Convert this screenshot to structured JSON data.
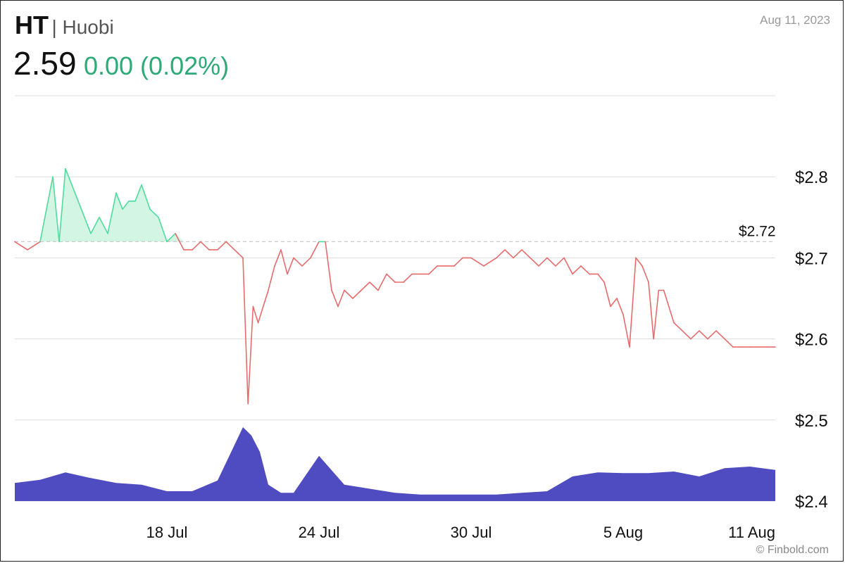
{
  "header": {
    "symbol": "HT",
    "separator_name": "| Huobi",
    "price": "2.59",
    "change": "0.00 (0.02%)",
    "date": "Aug 11, 2023"
  },
  "footer": {
    "credit": "© Finbold.com"
  },
  "colors": {
    "up": "#4fdc9c",
    "up_fill": "#d3f5e4",
    "down": "#e86b6b",
    "change_text": "#2eaa78",
    "volume": "#4f4bc0",
    "grid": "#dddddd",
    "reference": "#cccccc"
  },
  "chart_data": {
    "type": "line",
    "title": "",
    "xlabel": "",
    "ylabel": "",
    "y_tick_labels": [
      "$2.8",
      "$2.7",
      "$2.6",
      "$2.5",
      "$2.4"
    ],
    "y_ticks": [
      2.8,
      2.7,
      2.6,
      2.5,
      2.4
    ],
    "ylim": [
      2.4,
      2.9
    ],
    "x_tick_labels": [
      "18 Jul",
      "24 Jul",
      "30 Jul",
      "5 Aug",
      "11 Aug"
    ],
    "x_ticks": [
      "2023-07-18",
      "2023-07-24",
      "2023-07-30",
      "2023-08-05",
      "2023-08-11"
    ],
    "xlim": [
      "2023-07-12",
      "2023-08-11"
    ],
    "reference": {
      "value": 2.72,
      "label": "$2.72"
    },
    "grid": true,
    "series": [
      {
        "x": [
          "2023-07-12",
          "2023-07-12",
          "2023-07-13",
          "2023-07-13",
          "2023-07-13",
          "2023-07-13",
          "2023-07-14",
          "2023-07-14",
          "2023-07-14",
          "2023-07-14",
          "2023-07-15",
          "2023-07-15",
          "2023-07-15",
          "2023-07-16",
          "2023-07-16",
          "2023-07-16",
          "2023-07-16",
          "2023-07-17",
          "2023-07-17",
          "2023-07-17",
          "2023-07-18",
          "2023-07-18",
          "2023-07-18",
          "2023-07-19",
          "2023-07-19",
          "2023-07-19",
          "2023-07-20",
          "2023-07-20",
          "2023-07-20",
          "2023-07-21",
          "2023-07-21",
          "2023-07-21",
          "2023-07-21",
          "2023-07-21",
          "2023-07-22",
          "2023-07-22",
          "2023-07-22",
          "2023-07-22",
          "2023-07-23",
          "2023-07-23",
          "2023-07-23",
          "2023-07-24",
          "2023-07-24",
          "2023-07-24",
          "2023-07-24",
          "2023-07-25",
          "2023-07-25",
          "2023-07-25",
          "2023-07-26",
          "2023-07-26",
          "2023-07-26",
          "2023-07-27",
          "2023-07-27",
          "2023-07-27",
          "2023-07-28",
          "2023-07-28",
          "2023-07-28",
          "2023-07-29",
          "2023-07-29",
          "2023-07-29",
          "2023-07-30",
          "2023-07-30",
          "2023-07-31",
          "2023-07-31",
          "2023-07-31",
          "2023-08-01",
          "2023-08-01",
          "2023-08-01",
          "2023-08-02",
          "2023-08-02",
          "2023-08-02",
          "2023-08-03",
          "2023-08-03",
          "2023-08-03",
          "2023-08-04",
          "2023-08-04",
          "2023-08-04",
          "2023-08-04",
          "2023-08-05",
          "2023-08-05",
          "2023-08-05",
          "2023-08-05",
          "2023-08-06",
          "2023-08-06",
          "2023-08-06",
          "2023-08-06",
          "2023-08-06",
          "2023-08-07",
          "2023-08-07",
          "2023-08-07",
          "2023-08-08",
          "2023-08-08",
          "2023-08-08",
          "2023-08-09",
          "2023-08-09",
          "2023-08-09",
          "2023-08-10",
          "2023-08-10",
          "2023-08-10",
          "2023-08-11"
        ],
        "values": [
          2.72,
          2.71,
          2.72,
          2.76,
          2.8,
          2.72,
          2.81,
          2.79,
          2.77,
          2.75,
          2.73,
          2.75,
          2.73,
          2.78,
          2.76,
          2.77,
          2.77,
          2.79,
          2.76,
          2.75,
          2.72,
          2.73,
          2.71,
          2.71,
          2.72,
          2.71,
          2.71,
          2.72,
          2.71,
          2.7,
          2.52,
          2.64,
          2.62,
          2.64,
          2.66,
          2.69,
          2.71,
          2.68,
          2.7,
          2.69,
          2.7,
          2.72,
          2.72,
          2.66,
          2.64,
          2.66,
          2.65,
          2.66,
          2.67,
          2.66,
          2.68,
          2.67,
          2.67,
          2.68,
          2.68,
          2.68,
          2.69,
          2.69,
          2.69,
          2.7,
          2.7,
          2.69,
          2.7,
          2.71,
          2.7,
          2.71,
          2.7,
          2.69,
          2.7,
          2.69,
          2.7,
          2.68,
          2.69,
          2.68,
          2.68,
          2.67,
          2.64,
          2.65,
          2.63,
          2.59,
          2.7,
          2.69,
          2.67,
          2.6,
          2.66,
          2.66,
          2.64,
          2.62,
          2.61,
          2.6,
          2.61,
          2.6,
          2.61,
          2.6,
          2.59,
          2.59,
          2.59,
          2.59,
          2.59,
          2.59
        ]
      }
    ],
    "volume": {
      "x": [
        "2023-07-12",
        "2023-07-13",
        "2023-07-14",
        "2023-07-15",
        "2023-07-16",
        "2023-07-17",
        "2023-07-18",
        "2023-07-19",
        "2023-07-20",
        "2023-07-21",
        "2023-07-21",
        "2023-07-21",
        "2023-07-22",
        "2023-07-22",
        "2023-07-23",
        "2023-07-24",
        "2023-07-25",
        "2023-07-26",
        "2023-07-27",
        "2023-07-28",
        "2023-07-29",
        "2023-07-30",
        "2023-07-31",
        "2023-08-01",
        "2023-08-02",
        "2023-08-03",
        "2023-08-04",
        "2023-08-05",
        "2023-08-06",
        "2023-08-07",
        "2023-08-08",
        "2023-08-09",
        "2023-08-10",
        "2023-08-11"
      ],
      "values": [
        0.022,
        0.026,
        0.035,
        0.028,
        0.022,
        0.02,
        0.012,
        0.012,
        0.025,
        0.09,
        0.08,
        0.06,
        0.02,
        0.01,
        0.01,
        0.055,
        0.02,
        0.015,
        0.01,
        0.008,
        0.008,
        0.008,
        0.008,
        0.01,
        0.012,
        0.03,
        0.035,
        0.034,
        0.034,
        0.036,
        0.03,
        0.04,
        0.042,
        0.038
      ]
    }
  }
}
